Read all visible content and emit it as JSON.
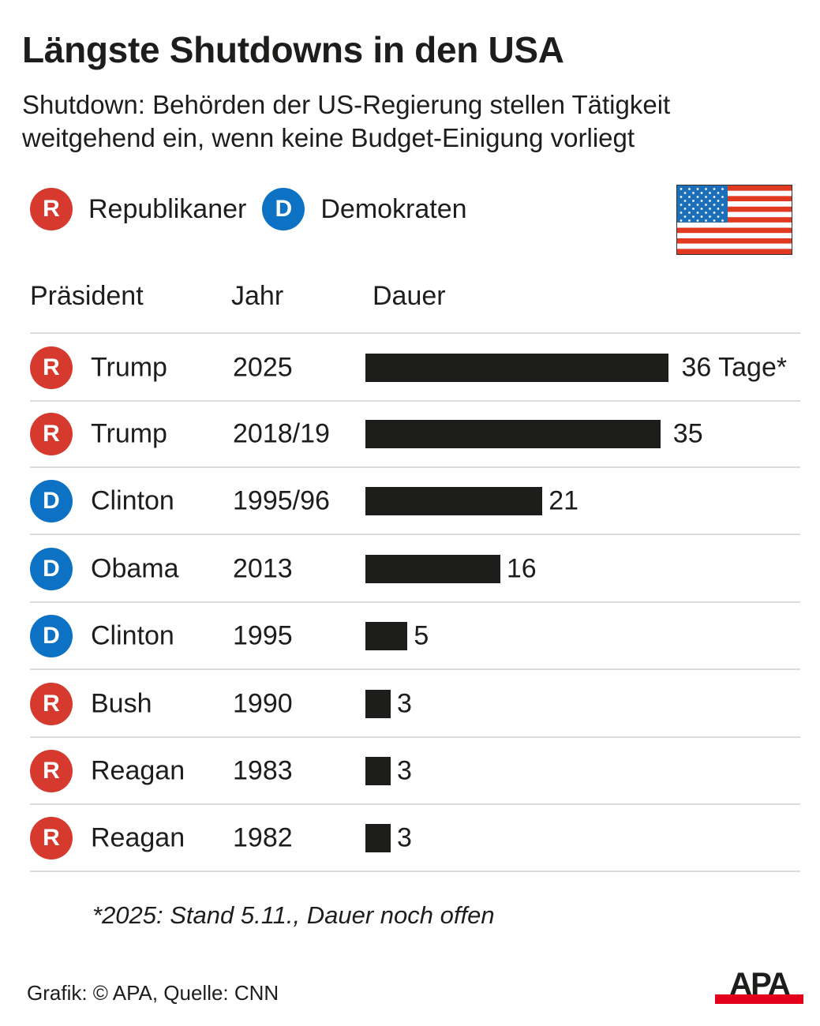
{
  "header": {
    "title": "Längste Shutdowns in den USA",
    "subtitle": "Shutdown: Behörden der US-Regierung stellen Tätigkeit weitgehend ein, wenn keine Budget-Einigung vorliegt"
  },
  "legend": [
    {
      "badge": "R",
      "label": "Republikaner",
      "color": "#d63a2f"
    },
    {
      "badge": "D",
      "label": "Demokraten",
      "color": "#0e72c4"
    }
  ],
  "flag": {
    "icon": "us-flag-icon",
    "colors": {
      "red": "#e03a22",
      "white": "#ffffff",
      "blue": "#1a6fb8"
    }
  },
  "columns": {
    "president": "Präsident",
    "year": "Jahr",
    "duration": "Dauer"
  },
  "chart_data": {
    "type": "bar",
    "orientation": "horizontal",
    "title": "Längste Shutdowns in den USA",
    "xlabel": "Dauer",
    "unit": "Tage",
    "xlim": [
      0,
      36
    ],
    "grid": false,
    "bar_color": "#1d1d1b",
    "categories": [
      "Trump 2025",
      "Trump 2018/19",
      "Clinton 1995/96",
      "Obama 2013",
      "Clinton 1995",
      "Bush 1990",
      "Reagan 1983",
      "Reagan 1982"
    ],
    "rows": [
      {
        "party": "R",
        "president": "Trump",
        "year": "2025",
        "value": 36,
        "label": "36 Tage*"
      },
      {
        "party": "R",
        "president": "Trump",
        "year": "2018/19",
        "value": 35,
        "label": "35"
      },
      {
        "party": "D",
        "president": "Clinton",
        "year": "1995/96",
        "value": 21,
        "label": "21"
      },
      {
        "party": "D",
        "president": "Obama",
        "year": "2013",
        "value": 16,
        "label": "16"
      },
      {
        "party": "D",
        "president": "Clinton",
        "year": "1995",
        "value": 5,
        "label": "5"
      },
      {
        "party": "R",
        "president": "Bush",
        "year": "1990",
        "value": 3,
        "label": "3"
      },
      {
        "party": "R",
        "president": "Reagan",
        "year": "1983",
        "value": 3,
        "label": "3"
      },
      {
        "party": "R",
        "president": "Reagan",
        "year": "1982",
        "value": 3,
        "label": "3"
      }
    ],
    "values": [
      36,
      35,
      21,
      16,
      5,
      3,
      3,
      3
    ]
  },
  "party_colors": {
    "R": "#d63a2f",
    "D": "#0e72c4"
  },
  "footnote": "*2025: Stand 5.11., Dauer noch offen",
  "source": "Grafik: © APA, Quelle: CNN",
  "logo": {
    "text": "APA",
    "accent": "#e2001a"
  }
}
